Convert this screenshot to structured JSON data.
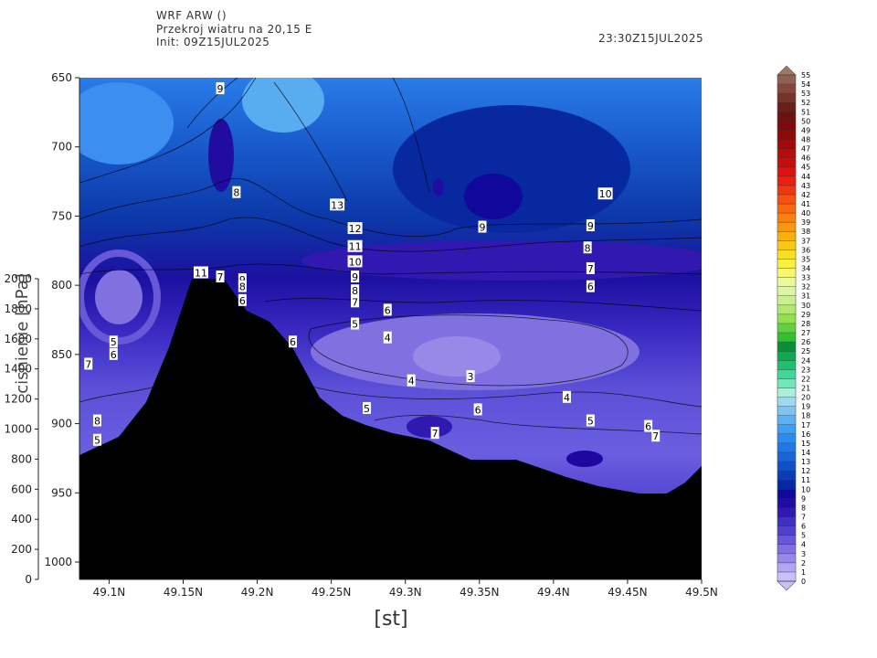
{
  "header": {
    "model": "WRF ARW ()",
    "subtitle": "Przekroj wiatru na 20,15 E",
    "init": "Init: 09Z15JUL2025",
    "valid_time": "23:30Z15JUL2025"
  },
  "chart_data": {
    "type": "heatmap",
    "title": "Przekroj wiatru na 20,15 E",
    "xlabel": "[st]",
    "ylabel": "cisnienie [hPa]",
    "xlim": [
      49.08,
      49.5
    ],
    "ylim": [
      1010,
      650
    ],
    "x_tick_values": [
      49.1,
      49.15,
      49.2,
      49.25,
      49.3,
      49.35,
      49.4,
      49.45,
      49.5
    ],
    "x_tick_labels": [
      "49.1N",
      "49.15N",
      "49.2N",
      "49.25N",
      "49.3N",
      "49.35N",
      "49.4N",
      "49.45N",
      "49.5N"
    ],
    "y_tick_values": [
      650,
      700,
      750,
      800,
      850,
      900,
      950,
      1000
    ],
    "y_tick_labels": [
      "650",
      "700",
      "750",
      "800",
      "850",
      "900",
      "950",
      "1000"
    ],
    "y2_tick_labels": [
      "2000",
      "1800",
      "1600",
      "1400",
      "1200",
      "1000",
      "800",
      "600",
      "400",
      "200",
      "0"
    ],
    "colorbar": {
      "levels": [
        0,
        1,
        2,
        3,
        4,
        5,
        6,
        7,
        8,
        9,
        10,
        11,
        12,
        13,
        14,
        15,
        16,
        17,
        18,
        19,
        20,
        21,
        22,
        23,
        24,
        25,
        26,
        27,
        28,
        29,
        30,
        31,
        32,
        33,
        34,
        35,
        36,
        37,
        38,
        39,
        40,
        41,
        42,
        43,
        44,
        45,
        46,
        47,
        48,
        49,
        50,
        51,
        52,
        53,
        54,
        55
      ],
      "colors": [
        "#c8c0f8",
        "#b0a8f0",
        "#9888e8",
        "#8070e0",
        "#6858d8",
        "#5040cc",
        "#4030c0",
        "#3018b0",
        "#200ca0",
        "#10089a",
        "#0828a0",
        "#0c3cb4",
        "#1050c8",
        "#1864d8",
        "#2078e8",
        "#2a8cf0",
        "#3c9ef4",
        "#58b2f4",
        "#7cc4f4",
        "#a0d8f4",
        "#a8f0dc",
        "#70e8b8",
        "#40d898",
        "#20c070",
        "#10a850",
        "#089038",
        "#30c030",
        "#60d040",
        "#90e050",
        "#b0e870",
        "#c8f090",
        "#dcf4a8",
        "#ecf8a0",
        "#f8f870",
        "#f8f040",
        "#f8e020",
        "#f8c818",
        "#f8b010",
        "#f89810",
        "#f88010",
        "#f86810",
        "#f85010",
        "#f03810",
        "#e82010",
        "#e01010",
        "#c80c0c",
        "#b80c0c",
        "#a40808",
        "#900808",
        "#800808",
        "#701010",
        "#6a2018",
        "#763428",
        "#84483c",
        "#906050",
        "#a07868"
      ]
    },
    "contour_labels": [
      {
        "text": "9",
        "x": 49.175,
        "y": 658
      },
      {
        "text": "8",
        "x": 49.186,
        "y": 733
      },
      {
        "text": "13",
        "x": 49.254,
        "y": 742
      },
      {
        "text": "10",
        "x": 49.435,
        "y": 734
      },
      {
        "text": "12",
        "x": 49.266,
        "y": 759
      },
      {
        "text": "9",
        "x": 49.352,
        "y": 758
      },
      {
        "text": "9",
        "x": 49.425,
        "y": 757
      },
      {
        "text": "11",
        "x": 49.266,
        "y": 772
      },
      {
        "text": "8",
        "x": 49.423,
        "y": 773
      },
      {
        "text": "10",
        "x": 49.266,
        "y": 783
      },
      {
        "text": "7",
        "x": 49.425,
        "y": 788
      },
      {
        "text": "11",
        "x": 49.162,
        "y": 791
      },
      {
        "text": "7",
        "x": 49.175,
        "y": 794
      },
      {
        "text": "9",
        "x": 49.266,
        "y": 794
      },
      {
        "text": "9",
        "x": 49.19,
        "y": 796
      },
      {
        "text": "8",
        "x": 49.19,
        "y": 801
      },
      {
        "text": "6",
        "x": 49.425,
        "y": 801
      },
      {
        "text": "8",
        "x": 49.266,
        "y": 804
      },
      {
        "text": "6",
        "x": 49.19,
        "y": 811
      },
      {
        "text": "7",
        "x": 49.266,
        "y": 812
      },
      {
        "text": "6",
        "x": 49.288,
        "y": 818
      },
      {
        "text": "5",
        "x": 49.266,
        "y": 828
      },
      {
        "text": "4",
        "x": 49.288,
        "y": 838
      },
      {
        "text": "5",
        "x": 49.103,
        "y": 841
      },
      {
        "text": "6",
        "x": 49.224,
        "y": 841
      },
      {
        "text": "6",
        "x": 49.103,
        "y": 850
      },
      {
        "text": "7",
        "x": 49.086,
        "y": 857
      },
      {
        "text": "3",
        "x": 49.344,
        "y": 866
      },
      {
        "text": "4",
        "x": 49.304,
        "y": 869
      },
      {
        "text": "4",
        "x": 49.409,
        "y": 881
      },
      {
        "text": "5",
        "x": 49.274,
        "y": 889
      },
      {
        "text": "6",
        "x": 49.349,
        "y": 890
      },
      {
        "text": "8",
        "x": 49.092,
        "y": 898
      },
      {
        "text": "5",
        "x": 49.425,
        "y": 898
      },
      {
        "text": "6",
        "x": 49.464,
        "y": 902
      },
      {
        "text": "7",
        "x": 49.32,
        "y": 907
      },
      {
        "text": "7",
        "x": 49.469,
        "y": 909
      },
      {
        "text": "5",
        "x": 49.092,
        "y": 912
      }
    ]
  }
}
